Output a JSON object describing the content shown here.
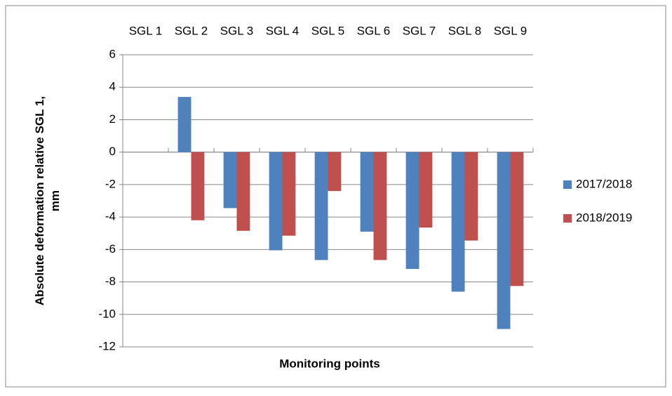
{
  "chart_data": {
    "type": "bar",
    "categories": [
      "SGL 1",
      "SGL 2",
      "SGL 3",
      "SGL 4",
      "SGL 5",
      "SGL 6",
      "SGL 7",
      "SGL 8",
      "SGL 9"
    ],
    "series": [
      {
        "name": "2017/2018",
        "color": "#4f81bd",
        "values": [
          0,
          3.4,
          -3.45,
          -6.05,
          -6.65,
          -4.9,
          -7.2,
          -8.6,
          -10.9
        ]
      },
      {
        "name": "2018/2019",
        "color": "#c0504d",
        "values": [
          0,
          -4.2,
          -4.85,
          -5.15,
          -2.4,
          -6.65,
          -4.65,
          -5.45,
          -8.25
        ]
      }
    ],
    "y_label": "Absolute deformation  relative SGL 1, mm",
    "x_label": "Monitoring points",
    "ylim": [
      -12,
      6
    ],
    "yticks": [
      -12,
      -10,
      -8,
      -6,
      -4,
      -2,
      0,
      2,
      4,
      6
    ],
    "grid": true,
    "legend": "right"
  }
}
